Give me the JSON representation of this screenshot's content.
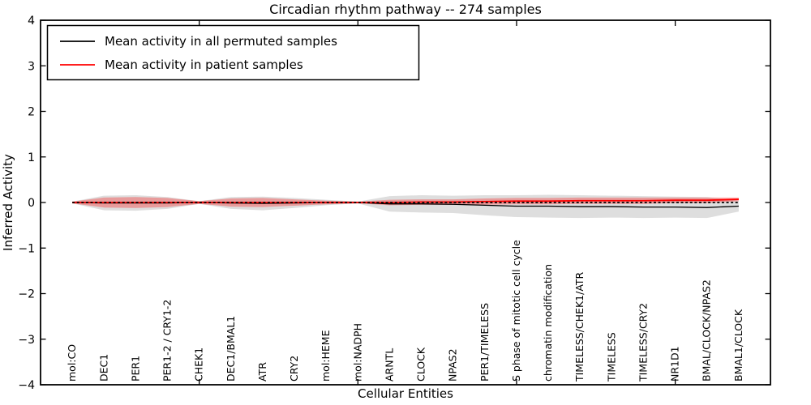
{
  "title": "Circadian rhythm pathway -- 274 samples",
  "axes": {
    "x_label": "Cellular Entities",
    "y_label": "Inferred Activity",
    "ylim": [
      -4,
      4
    ],
    "xlim": [
      0,
      23
    ],
    "y_tick_values": [
      4,
      3,
      2,
      1,
      0,
      -1,
      -2,
      -3,
      -4
    ],
    "y_tick_labels": [
      "4",
      "3",
      "2",
      "1",
      "0",
      "−1",
      "−2",
      "−3",
      "−4"
    ],
    "x_tick_values": [
      5,
      10,
      15,
      20
    ]
  },
  "legend": {
    "items": [
      {
        "label": "Mean activity in all permuted samples",
        "color": "#000000"
      },
      {
        "label": "Mean activity in patient samples",
        "color": "#ff0000"
      }
    ]
  },
  "colors": {
    "permuted_line": "#000000",
    "patient_line": "#ff0000",
    "permuted_band": "rgba(0,0,0,0.13)",
    "patient_band": "rgba(255,0,0,0.30)",
    "frame": "#000000",
    "background": "#ffffff"
  },
  "chart_data": {
    "type": "line",
    "title": "Circadian rhythm pathway -- 274 samples",
    "xlabel": "Cellular Entities",
    "ylabel": "Inferred Activity",
    "ylim": [
      -4,
      4
    ],
    "grid": false,
    "legend_position": "upper left",
    "categories": [
      "mol:CO",
      "DEC1",
      "PER1",
      "PER1-2 / CRY1-2",
      "CHEK1",
      "DEC1/BMAL1",
      "ATR",
      "CRY2",
      "mol:HEME",
      "mol:NADPH",
      "ARNTL",
      "CLOCK",
      "NPAS2",
      "PER1/TIMELESS",
      "S phase of mitotic cell cycle",
      "chromatin modification",
      "TIMELESS/CHEK1/ATR",
      "TIMELESS",
      "TIMELESS/CRY2",
      "NR1D1",
      "BMAL/CLOCK/NPAS2",
      "BMAL1/CLOCK"
    ],
    "series": [
      {
        "name": "Mean activity in all permuted samples",
        "color": "#000000",
        "line_style": "solid",
        "band": "±1 std shaded region",
        "band_color": "rgba(0,0,0,0.13)",
        "values": [
          0.0,
          -0.01,
          -0.01,
          -0.01,
          0.0,
          -0.01,
          -0.02,
          -0.01,
          0.0,
          0.0,
          -0.03,
          -0.03,
          -0.04,
          -0.06,
          -0.08,
          -0.08,
          -0.09,
          -0.09,
          -0.1,
          -0.1,
          -0.11,
          -0.08
        ],
        "std": [
          0.02,
          0.16,
          0.17,
          0.13,
          0.03,
          0.13,
          0.15,
          0.11,
          0.06,
          0.02,
          0.17,
          0.19,
          0.19,
          0.22,
          0.24,
          0.25,
          0.25,
          0.24,
          0.24,
          0.23,
          0.23,
          0.12
        ]
      },
      {
        "name": "Mean activity in patient samples",
        "color": "#ff0000",
        "line_style": "solid",
        "band": "±1 std shaded region",
        "band_color": "rgba(255,0,0,0.30)",
        "values": [
          0.0,
          0.0,
          0.0,
          0.0,
          0.0,
          0.0,
          0.0,
          0.0,
          0.0,
          0.0,
          0.0,
          0.01,
          0.01,
          0.02,
          0.03,
          0.03,
          0.04,
          0.04,
          0.04,
          0.05,
          0.05,
          0.07
        ],
        "std": [
          0.02,
          0.11,
          0.12,
          0.1,
          0.03,
          0.09,
          0.1,
          0.07,
          0.04,
          0.02,
          0.06,
          0.06,
          0.06,
          0.07,
          0.07,
          0.07,
          0.07,
          0.07,
          0.07,
          0.06,
          0.06,
          0.04
        ]
      }
    ],
    "reference_line": {
      "y": 0,
      "color": "#000000",
      "style": "dashed"
    }
  }
}
